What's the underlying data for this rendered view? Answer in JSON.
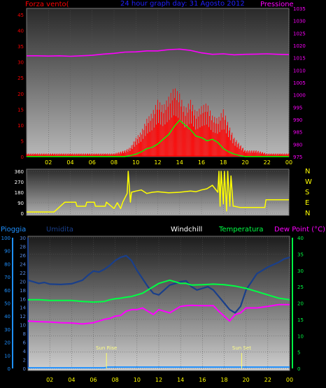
{
  "colors": {
    "background": "#000000",
    "wind": "#ff0000",
    "gust": "#00ff00",
    "pressure": "#ff00ff",
    "direction": "#ffff00",
    "rain": "#1e90ff",
    "humidity": "#1a3f8a",
    "temperature": "#00ff44",
    "dewpoint": "#ff00ff",
    "windchill": "#2b6cc4",
    "time_axis": "#ffff00"
  },
  "chart_data": [
    {
      "type": "line",
      "title": "24 hour graph day: 31 Agosto 2012",
      "left_axis_label": "Forza vento(",
      "right_axis_label": "Pressione",
      "x_ticks": [
        "02",
        "04",
        "06",
        "08",
        "10",
        "12",
        "14",
        "16",
        "18",
        "20",
        "22",
        "00"
      ],
      "left_ticks": [
        "0",
        "5",
        "10",
        "15",
        "20",
        "25",
        "30",
        "35",
        "40",
        "45"
      ],
      "right_ticks": [
        "975",
        "980",
        "985",
        "990",
        "995",
        "1000",
        "1005",
        "1010",
        "1015",
        "1020",
        "1025",
        "1030",
        "1035"
      ],
      "ylim_left": [
        0,
        47
      ],
      "ylim_right": [
        975,
        1035
      ],
      "series": [
        {
          "axis": "right",
          "x": [
            0,
            1,
            2,
            3,
            4,
            5,
            6,
            7,
            8,
            9,
            10,
            11,
            12,
            13,
            14,
            15,
            16,
            17,
            18,
            19,
            20,
            21,
            22,
            23,
            24
          ],
          "values": [
            1015.8,
            1015.8,
            1015.7,
            1015.8,
            1015.6,
            1015.8,
            1016,
            1016.5,
            1016.8,
            1017.3,
            1017.4,
            1017.8,
            1017.8,
            1018.3,
            1018.5,
            1018,
            1017,
            1016.4,
            1016.6,
            1016.2,
            1016.4,
            1016.5,
            1016.6,
            1016.4,
            1016.3
          ]
        },
        {
          "axis": "left",
          "x": [
            0,
            1,
            2,
            3,
            4,
            5,
            6,
            7,
            8,
            9,
            9.5,
            10,
            10.5,
            11,
            11.5,
            12,
            12.5,
            13,
            13.5,
            14,
            14.5,
            15,
            15.5,
            16,
            16.5,
            17,
            17.5,
            18,
            18.5,
            19,
            19.5,
            20,
            21,
            22,
            23,
            24
          ],
          "values": [
            0,
            0,
            0,
            0,
            0,
            0,
            0,
            0,
            0,
            0,
            0.3,
            0.8,
            1.5,
            2.5,
            3,
            4,
            5.5,
            7,
            9.5,
            11.5,
            10,
            8.5,
            6.5,
            6,
            5,
            5.5,
            4.5,
            2.5,
            1.5,
            0.8,
            0.3,
            0,
            0,
            0,
            0,
            0
          ]
        },
        {
          "axis": "left",
          "x": [
            0,
            1,
            2,
            3,
            4,
            5,
            6,
            7,
            8,
            9,
            9.5,
            10,
            10.5,
            11,
            11.5,
            12,
            12.5,
            13,
            13.5,
            14,
            14.5,
            15,
            15.5,
            16,
            16.5,
            17,
            17.5,
            18,
            18.5,
            19,
            19.5,
            20,
            21,
            22,
            23,
            24
          ],
          "values": [
            1,
            1,
            1,
            1,
            1,
            1,
            1,
            1,
            1,
            2,
            3,
            6,
            8,
            12,
            14,
            18,
            16,
            19,
            22,
            20,
            15,
            18,
            14,
            16,
            17,
            13,
            12,
            15,
            10,
            6,
            4,
            2,
            2,
            1,
            1,
            1
          ]
        }
      ]
    },
    {
      "type": "line",
      "left_ticks": [
        "0",
        "90",
        "180",
        "270",
        "360"
      ],
      "compass_labels": [
        "N",
        "W",
        "S",
        "E",
        "N"
      ],
      "ylim": [
        0,
        360
      ],
      "series": [
        {
          "x": [
            0,
            2.5,
            3.5,
            3.6,
            4.5,
            4.6,
            5.4,
            5.5,
            6.2,
            6.3,
            7.2,
            7.3,
            8,
            8.3,
            8.6,
            8.8,
            9.2,
            9.3,
            9.5,
            9.6,
            10,
            10.5,
            11,
            11.5,
            12,
            12.5,
            13,
            14,
            15,
            15.5,
            16,
            16.5,
            17,
            17.5,
            17.6,
            17.7,
            17.8,
            18,
            18.1,
            18.3,
            18.4,
            18.6,
            18.7,
            18.9,
            19,
            19.5,
            20,
            21,
            21.8,
            21.9,
            24
          ],
          "values": [
            10,
            10,
            95,
            95,
            95,
            60,
            60,
            95,
            95,
            60,
            60,
            95,
            40,
            90,
            40,
            95,
            170,
            360,
            95,
            180,
            190,
            200,
            170,
            180,
            185,
            180,
            175,
            180,
            190,
            185,
            200,
            210,
            240,
            180,
            360,
            60,
            360,
            80,
            360,
            20,
            360,
            60,
            320,
            60,
            60,
            50,
            50,
            50,
            50,
            115,
            115
          ]
        }
      ]
    },
    {
      "type": "line",
      "labels": [
        "Pioggia",
        "Umidita",
        "Windchill",
        "Temperatura",
        "Dew Point (°C)"
      ],
      "rain_ticks": [
        "0",
        "10",
        "20",
        "30",
        "40",
        "50",
        "60",
        "70",
        "80",
        "90",
        "100"
      ],
      "humidity_ticks": [
        "0",
        "2",
        "4",
        "6",
        "8",
        "10",
        "12",
        "14",
        "16",
        "18",
        "20",
        "22",
        "24",
        "26",
        "28",
        "30"
      ],
      "temp_ticks": [
        "0",
        "5",
        "10",
        "15",
        "20",
        "25",
        "30",
        "35",
        "40"
      ],
      "x_ticks": [
        "02",
        "04",
        "06",
        "08",
        "10",
        "12",
        "14",
        "16",
        "18",
        "20",
        "22",
        "00"
      ],
      "annotations": [
        "Sun Rise",
        "Sun Set"
      ],
      "ylim_temp": [
        0,
        40
      ],
      "series": [
        {
          "x": [
            0,
            0.5,
            1,
            1.5,
            2,
            3,
            4,
            5,
            5.5,
            6,
            6.5,
            7,
            7.5,
            8,
            8.5,
            9,
            9.5,
            10,
            10.5,
            11,
            11.5,
            12,
            12.5,
            13,
            13.5,
            14,
            14.5,
            15,
            15.5,
            16,
            16.5,
            17,
            17.5,
            18,
            18.5,
            19,
            19.5,
            20,
            21,
            22,
            23,
            23.5,
            24
          ],
          "values": [
            27,
            26.5,
            26,
            26.3,
            25.8,
            25.7,
            25.9,
            27,
            28.5,
            29.8,
            29.5,
            30.3,
            31.5,
            33,
            34,
            34.5,
            33,
            30,
            27.5,
            25,
            23,
            22.5,
            24,
            25.5,
            26,
            26.5,
            26.8,
            25,
            24,
            24.5,
            25,
            24,
            22,
            20,
            18,
            17,
            19,
            24,
            29,
            31,
            32.5,
            33.5,
            34
          ]
        },
        {
          "x": [
            0,
            1,
            2,
            3,
            4,
            5,
            6,
            7,
            7.5,
            8,
            8.5,
            9,
            9.5,
            10,
            10.5,
            11,
            11.5,
            12,
            12.5,
            13,
            13.5,
            14,
            14.5,
            15,
            16,
            17,
            18,
            19,
            20,
            21,
            22,
            23,
            24
          ],
          "values": [
            21,
            21,
            20.8,
            20.8,
            20.8,
            20.5,
            20.3,
            20.5,
            21,
            21.3,
            21.5,
            21.8,
            22,
            22.5,
            23,
            24,
            25,
            26,
            26.5,
            27,
            26.5,
            26,
            26,
            25.5,
            25.6,
            25.8,
            25.6,
            25.2,
            24.5,
            23.5,
            22.5,
            21.5,
            21
          ]
        },
        {
          "x": [
            0,
            1,
            2,
            3,
            4,
            5,
            6,
            7,
            7.5,
            8,
            8.5,
            9,
            9.5,
            10,
            10.5,
            11,
            11.5,
            12,
            12.5,
            13,
            13.5,
            14,
            14.5,
            15,
            16,
            17,
            17.5,
            18,
            18.5,
            19,
            19.5,
            20,
            21,
            22,
            23,
            24
          ],
          "values": [
            14.5,
            14.3,
            14.2,
            14,
            13.9,
            13.6,
            14,
            15,
            15.3,
            16,
            16.2,
            17.5,
            18,
            18,
            18.5,
            17.5,
            16.5,
            18,
            17.5,
            17,
            18,
            19,
            19.2,
            19.3,
            19.2,
            19.2,
            17.5,
            16,
            14.5,
            16.5,
            17,
            18.5,
            18.5,
            19,
            19.5,
            19.5
          ]
        },
        {
          "x": [
            0,
            1,
            2,
            3,
            4,
            5,
            6,
            7,
            7.3,
            8,
            9,
            10,
            11,
            12,
            13,
            14,
            15,
            16,
            17,
            18,
            19,
            20,
            21,
            22,
            23,
            24
          ],
          "values": [
            0.2,
            0.2,
            0.2,
            0.2,
            0.2,
            0.2,
            0.2,
            0.2,
            0.4,
            0.4,
            0.4,
            0.4,
            0.4,
            0.4,
            0.4,
            0.4,
            0.4,
            0.4,
            0.4,
            0.4,
            0.4,
            0.4,
            0.4,
            0.4,
            0.4,
            0.4
          ]
        }
      ]
    }
  ]
}
